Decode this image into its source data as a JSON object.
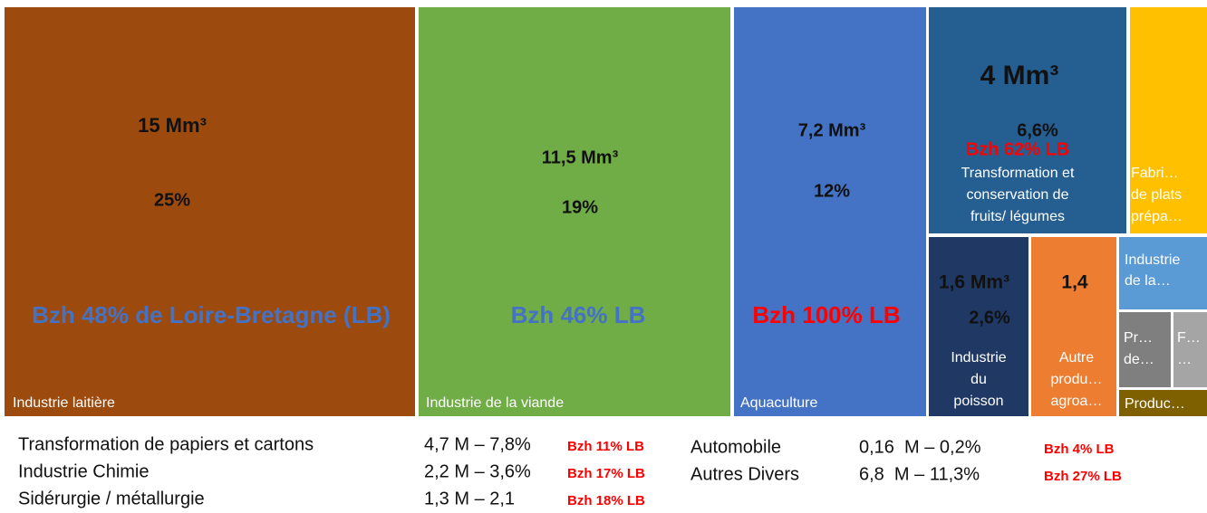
{
  "chart_data": {
    "type": "treemap",
    "tiles": [
      {
        "label_lines": [
          "Industrie laitière"
        ],
        "color": "#9c4a0e",
        "value": 15,
        "value_label": "15 Mm³",
        "share": 25,
        "share_label": "25%",
        "note": "Bzh 48% de Loire-Bretagne (LB)",
        "note_color": "#4472c4"
      },
      {
        "label_lines": [
          "Industrie de la viande"
        ],
        "color": "#70ad47",
        "value": 11.5,
        "value_label": "11,5 Mm³",
        "share": 19,
        "share_label": "19%",
        "note": "Bzh 46% LB",
        "note_color": "#4472c4"
      },
      {
        "label_lines": [
          "Aquaculture"
        ],
        "color": "#4472c4",
        "value": 7.2,
        "value_label": "7,2 Mm³",
        "share": 12,
        "share_label": "12%",
        "note": "Bzh 100% LB",
        "note_color": "#ff0000"
      },
      {
        "label_lines": [
          "Transformation et",
          "conservation de",
          "fruits/ légumes"
        ],
        "color": "#255e91",
        "value": 4,
        "value_label": "4 Mm³",
        "share": 6.6,
        "share_label": "6,6%",
        "note": "Bzh 62% LB",
        "note_color": "#ff0000"
      },
      {
        "label_lines": [
          "Fabri…",
          "de plats",
          "prépa…"
        ],
        "color": "#ffc000",
        "value": 1.6
      },
      {
        "label_lines": [
          "Industrie",
          "du",
          "poisson"
        ],
        "color": "#203864",
        "value": 1.6,
        "value_label": "1,6 Mm³",
        "share": 2.6,
        "share_label": "2,6%"
      },
      {
        "label_lines": [
          "Autre",
          "produ…",
          "agroa…"
        ],
        "color": "#ed7d31",
        "value": 1.4,
        "value_label": "1,4"
      },
      {
        "label_lines": [
          "Industrie",
          "de la…"
        ],
        "color": "#5b9bd5",
        "value": 0.6
      },
      {
        "label_lines": [
          "Pr…",
          "de…"
        ],
        "color": "#7f7f7f",
        "value": 0.35
      },
      {
        "label_lines": [
          "F…",
          "…"
        ],
        "color": "#a5a5a5",
        "value": 0.22
      },
      {
        "label_lines": [
          "Produc…"
        ],
        "color": "#7f6000",
        "value": 0.2
      }
    ],
    "others": [
      {
        "name": "Transformation de papiers et cartons",
        "amount": "4,7 M – 7,8%",
        "note": "Bzh 11% LB"
      },
      {
        "name": "Industrie Chimie",
        "amount": "2,2 M – 3,6%",
        "note": "Bzh 17% LB"
      },
      {
        "name": "Sidérurgie / métallurgie",
        "amount": "1,3 M – 2,1",
        "note": "Bzh 18% LB"
      },
      {
        "name": "Automobile",
        "amount": "0,16  M – 0,2%",
        "note": "Bzh 4% LB"
      },
      {
        "name": "Autres Divers",
        "amount": "6,8  M – 11,3%",
        "note": "Bzh 27% LB"
      }
    ]
  }
}
